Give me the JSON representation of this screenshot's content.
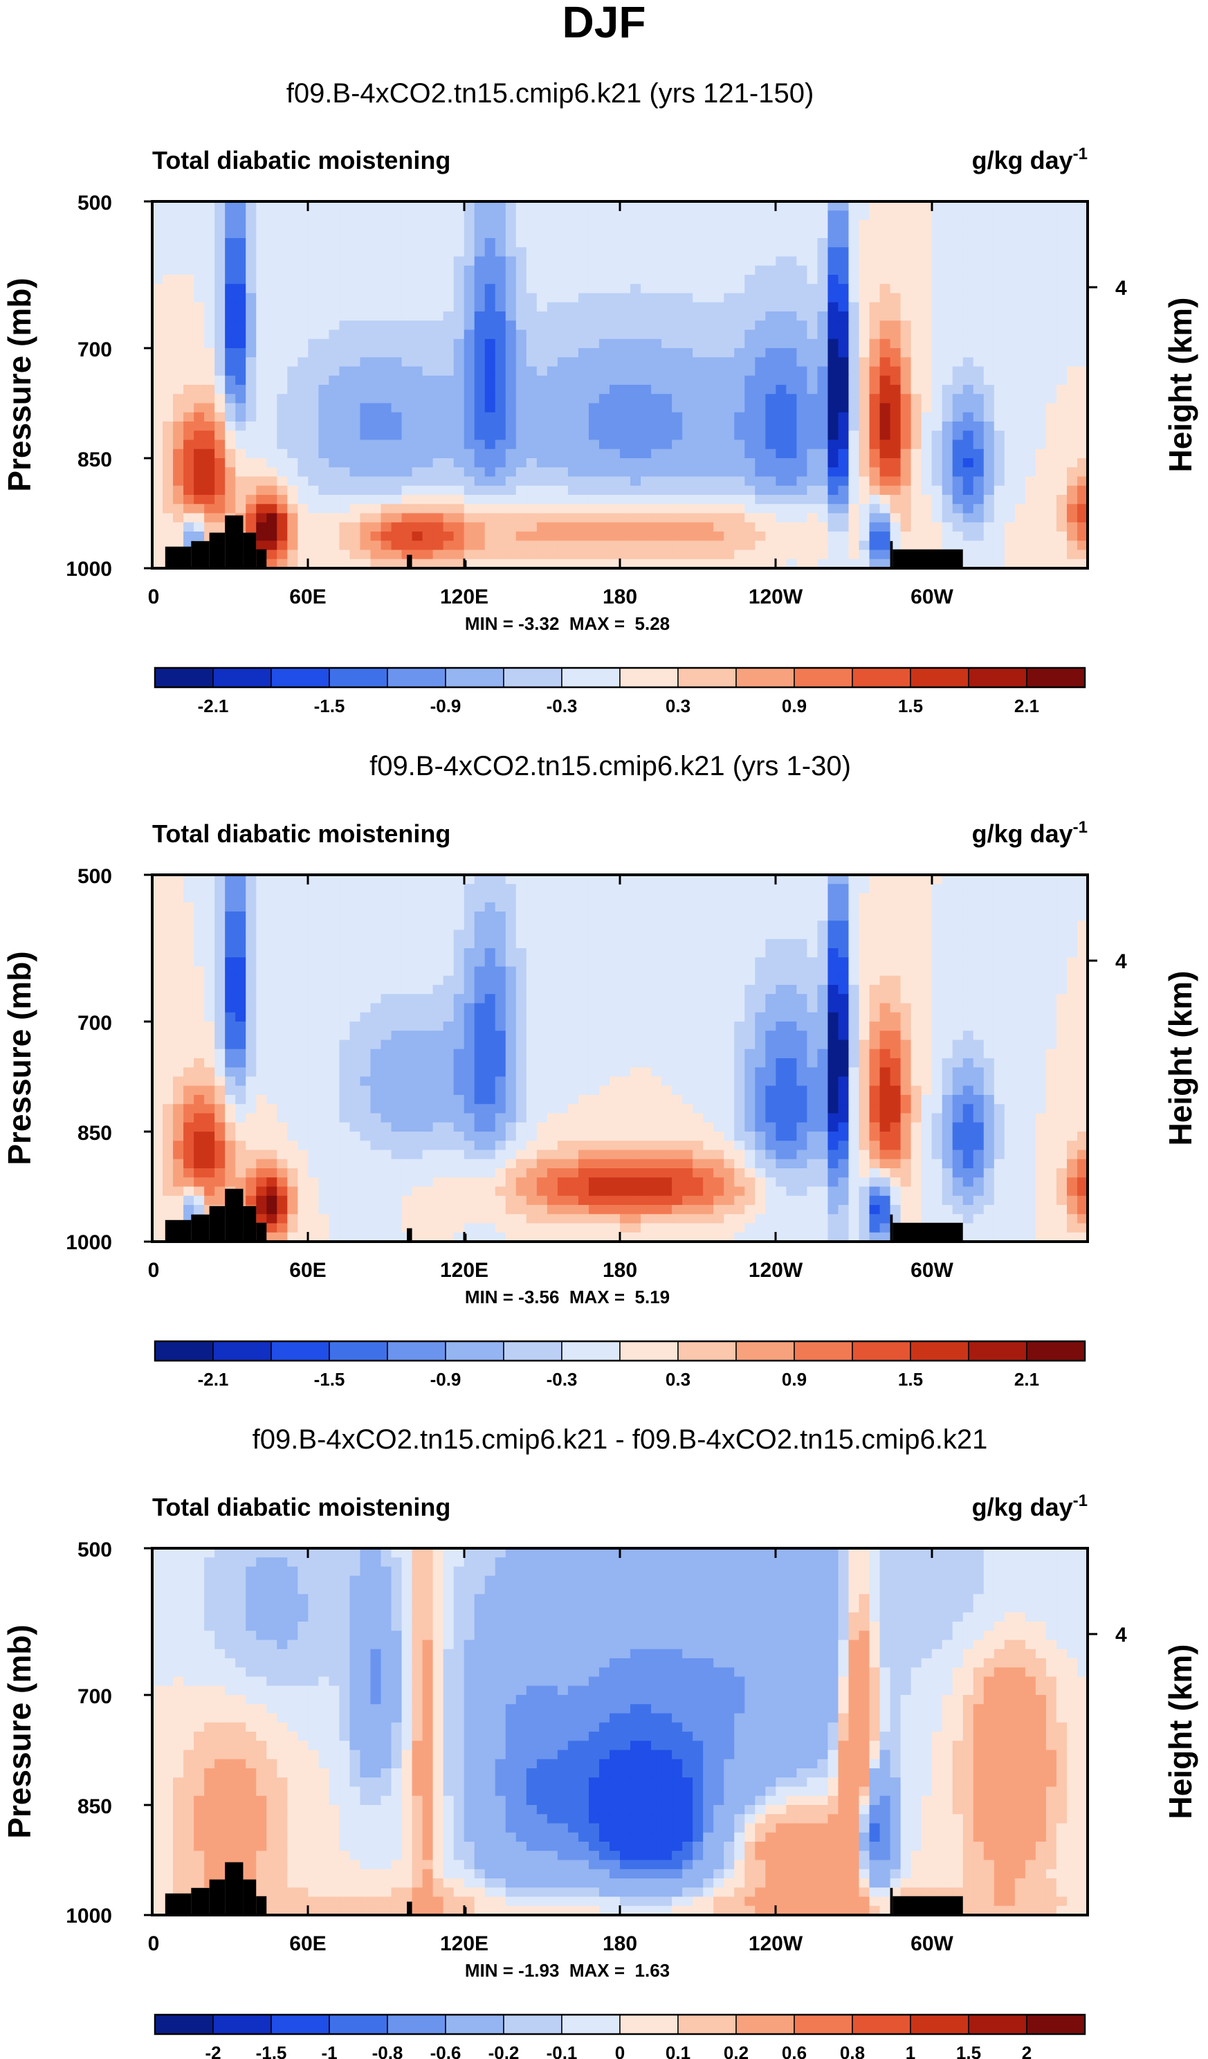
{
  "figure": {
    "season": "DJF"
  },
  "chart_data": [
    {
      "type": "heatmap",
      "title": "f09.B-4xCO2.tn15.cmip6.k21 (yrs 121-150)",
      "left_string": "Total diabatic moistening",
      "right_string": "g/kg day",
      "right_exp": "-1",
      "ylabel": "Pressure (mb)",
      "y2label": "Height (km)",
      "y_ticks": [
        "500",
        "700",
        "850",
        "1000"
      ],
      "y2_ticks": [
        "4"
      ],
      "x_ticks": [
        "0",
        "60E",
        "120E",
        "180",
        "120W",
        "60W"
      ],
      "ylim": [
        1000,
        500
      ],
      "xlim": [
        0,
        360
      ],
      "minmax": "MIN = -3.32  MAX =  5.28",
      "colorbar": {
        "labels": [
          "-2.1",
          "-1.5",
          "-0.9",
          "-0.3",
          "0.3",
          "0.9",
          "1.5",
          "2.1"
        ],
        "label_after_box": [
          1,
          3,
          5,
          7,
          9,
          11,
          13,
          15
        ],
        "levels": [
          -2.4,
          -2.1,
          -1.8,
          -1.5,
          -1.2,
          -0.9,
          -0.6,
          -0.3,
          0,
          0.3,
          0.6,
          0.9,
          1.2,
          1.5,
          1.8,
          2.1,
          2.4
        ]
      },
      "field": {
        "base": 0,
        "features": [
          {
            "lon": 20,
            "p": 830,
            "amp": 1.8,
            "wl": 9,
            "wp": 70
          },
          {
            "lon": 32,
            "p": 620,
            "amp": -1.8,
            "wl": 4,
            "wp": 110
          },
          {
            "lon": 45,
            "p": 930,
            "amp": 2.4,
            "wl": 6,
            "wp": 45
          },
          {
            "lon": 16,
            "p": 940,
            "amp": -1.4,
            "wl": 3,
            "wp": 30
          },
          {
            "lon": 100,
            "p": 940,
            "amp": 1.3,
            "wl": 16,
            "wp": 35
          },
          {
            "lon": 130,
            "p": 650,
            "amp": -1.2,
            "wl": 7,
            "wp": 140
          },
          {
            "lon": 85,
            "p": 760,
            "amp": -0.9,
            "wl": 25,
            "wp": 90
          },
          {
            "lon": 185,
            "p": 760,
            "amp": -1.0,
            "wl": 40,
            "wp": 110
          },
          {
            "lon": 185,
            "p": 930,
            "amp": 1.0,
            "wl": 60,
            "wp": 40
          },
          {
            "lon": 264,
            "p": 700,
            "amp": -2.4,
            "wl": 3,
            "wp": 150
          },
          {
            "lon": 244,
            "p": 760,
            "amp": -1.0,
            "wl": 12,
            "wp": 120
          },
          {
            "lon": 283,
            "p": 760,
            "amp": 2.0,
            "wl": 6,
            "wp": 90
          },
          {
            "lon": 280,
            "p": 940,
            "amp": -2.0,
            "wl": 4,
            "wp": 45
          },
          {
            "lon": 314,
            "p": 820,
            "amp": -1.5,
            "wl": 7,
            "wp": 80
          },
          {
            "lon": 358,
            "p": 900,
            "amp": 1.3,
            "wl": 5,
            "wp": 50
          }
        ]
      }
    },
    {
      "type": "heatmap",
      "title": "f09.B-4xCO2.tn15.cmip6.k21 (yrs 1-30)",
      "left_string": "Total diabatic moistening",
      "right_string": "g/kg day",
      "right_exp": "-1",
      "ylabel": "Pressure (mb)",
      "y2label": "Height (km)",
      "y_ticks": [
        "500",
        "700",
        "850",
        "1000"
      ],
      "y2_ticks": [
        "4"
      ],
      "x_ticks": [
        "0",
        "60E",
        "120E",
        "180",
        "120W",
        "60W"
      ],
      "ylim": [
        1000,
        500
      ],
      "xlim": [
        0,
        360
      ],
      "minmax": "MIN = -3.56  MAX =  5.19",
      "colorbar": {
        "labels": [
          "-2.1",
          "-1.5",
          "-0.9",
          "-0.3",
          "0.3",
          "0.9",
          "1.5",
          "2.1"
        ],
        "label_after_box": [
          1,
          3,
          5,
          7,
          9,
          11,
          13,
          15
        ],
        "levels": [
          -2.4,
          -2.1,
          -1.8,
          -1.5,
          -1.2,
          -0.9,
          -0.6,
          -0.3,
          0,
          0.3,
          0.6,
          0.9,
          1.2,
          1.5,
          1.8,
          2.1,
          2.4
        ]
      },
      "field": {
        "base": 0,
        "features": [
          {
            "lon": 20,
            "p": 840,
            "amp": 1.7,
            "wl": 9,
            "wp": 70
          },
          {
            "lon": 32,
            "p": 620,
            "amp": -1.8,
            "wl": 4,
            "wp": 110
          },
          {
            "lon": 45,
            "p": 930,
            "amp": 2.2,
            "wl": 6,
            "wp": 45
          },
          {
            "lon": 16,
            "p": 940,
            "amp": -1.4,
            "wl": 3,
            "wp": 30
          },
          {
            "lon": 130,
            "p": 680,
            "amp": -1.2,
            "wl": 8,
            "wp": 130
          },
          {
            "lon": 100,
            "p": 740,
            "amp": -0.9,
            "wl": 20,
            "wp": 80
          },
          {
            "lon": 185,
            "p": 900,
            "amp": 1.7,
            "wl": 35,
            "wp": 40
          },
          {
            "lon": 264,
            "p": 700,
            "amp": -2.4,
            "wl": 3,
            "wp": 150
          },
          {
            "lon": 244,
            "p": 770,
            "amp": -1.4,
            "wl": 12,
            "wp": 120
          },
          {
            "lon": 283,
            "p": 770,
            "amp": 1.8,
            "wl": 6,
            "wp": 90
          },
          {
            "lon": 280,
            "p": 940,
            "amp": -2.0,
            "wl": 4,
            "wp": 45
          },
          {
            "lon": 314,
            "p": 820,
            "amp": -1.5,
            "wl": 7,
            "wp": 80
          },
          {
            "lon": 358,
            "p": 900,
            "amp": 1.3,
            "wl": 5,
            "wp": 50
          }
        ]
      }
    },
    {
      "type": "heatmap",
      "title": "f09.B-4xCO2.tn15.cmip6.k21 - f09.B-4xCO2.tn15.cmip6.k21",
      "left_string": "Total diabatic moistening",
      "right_string": "g/kg day",
      "right_exp": "-1",
      "ylabel": "Pressure (mb)",
      "y2label": "Height (km)",
      "y_ticks": [
        "500",
        "700",
        "850",
        "1000"
      ],
      "y2_ticks": [
        "4"
      ],
      "x_ticks": [
        "0",
        "60E",
        "120E",
        "180",
        "120W",
        "60W"
      ],
      "ylim": [
        1000,
        500
      ],
      "xlim": [
        0,
        360
      ],
      "minmax": "MIN = -1.93  MAX =  1.63",
      "colorbar": {
        "labels": [
          "-2",
          "-1.5",
          "-1",
          "-0.8",
          "-0.6",
          "-0.2",
          "-0.1",
          "0",
          "0.1",
          "0.2",
          "0.6",
          "0.8",
          "1",
          "1.5",
          "2"
        ],
        "label_after_box": [
          1,
          2,
          3,
          4,
          5,
          6,
          7,
          8,
          9,
          10,
          11,
          12,
          13,
          14,
          15
        ],
        "levels": [
          -3,
          -2,
          -1.5,
          -1,
          -0.8,
          -0.6,
          -0.2,
          -0.1,
          0,
          0.1,
          0.2,
          0.6,
          0.8,
          1,
          1.5,
          2,
          3
        ]
      },
      "field": {
        "base": 0,
        "features": [
          {
            "lon": 185,
            "p": 820,
            "amp": -1.0,
            "wl": 30,
            "wp": 100
          },
          {
            "lon": 195,
            "p": 620,
            "amp": -0.5,
            "wl": 45,
            "wp": 120
          },
          {
            "lon": 195,
            "p": 860,
            "amp": -0.5,
            "wl": 12,
            "wp": 60
          },
          {
            "lon": 278,
            "p": 850,
            "amp": -1.2,
            "wl": 5,
            "wp": 70
          },
          {
            "lon": 272,
            "p": 740,
            "amp": 0.9,
            "wl": 5,
            "wp": 150
          },
          {
            "lon": 330,
            "p": 760,
            "amp": 0.5,
            "wl": 12,
            "wp": 120
          },
          {
            "lon": 85,
            "p": 640,
            "amp": -0.6,
            "wl": 6,
            "wp": 90
          },
          {
            "lon": 105,
            "p": 720,
            "amp": 0.35,
            "wl": 4,
            "wp": 200
          },
          {
            "lon": 30,
            "p": 840,
            "amp": 0.3,
            "wl": 15,
            "wp": 120
          },
          {
            "lon": 140,
            "p": 760,
            "amp": -0.35,
            "wl": 12,
            "wp": 150
          },
          {
            "lon": 240,
            "p": 870,
            "amp": 0.5,
            "wl": 18,
            "wp": 60
          },
          {
            "lon": 200,
            "p": 980,
            "amp": 0.25,
            "wl": 100,
            "wp": 30
          },
          {
            "lon": 45,
            "p": 560,
            "amp": -0.25,
            "wl": 20,
            "wp": 80
          },
          {
            "lon": 250,
            "p": 600,
            "amp": -0.3,
            "wl": 20,
            "wp": 100
          },
          {
            "lon": 320,
            "p": 540,
            "amp": -0.15,
            "wl": 30,
            "wp": 60
          }
        ]
      }
    }
  ],
  "colors": {
    "palette": [
      "#081d8a",
      "#102fc3",
      "#1f4ee8",
      "#3e71e9",
      "#6a94ee",
      "#94b4f2",
      "#bcd0f6",
      "#dde8fa",
      "#fde6d8",
      "#fbc7ad",
      "#f8a27d",
      "#f27a53",
      "#e55532",
      "#cc3418",
      "#a61b0e",
      "#7a0b0b"
    ],
    "topography": "#000000"
  }
}
